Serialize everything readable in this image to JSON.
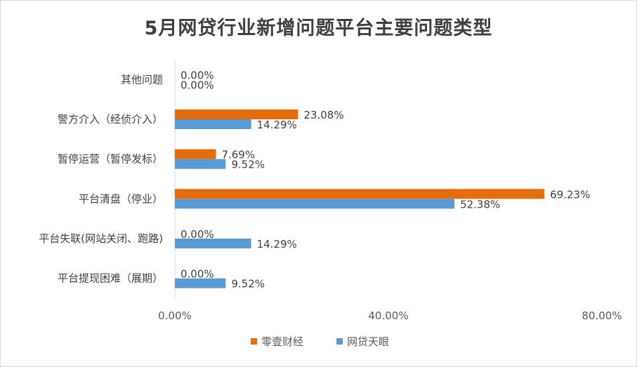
{
  "chart_data": {
    "type": "bar",
    "orientation": "horizontal",
    "title": "5月网贷行业新增问题平台主要问题类型",
    "categories": [
      "其他问题",
      "警方介入（经侦介入）",
      "暂停运营（暂停发标）",
      "平台清盘（停业）",
      "平台失联(网站关闭、跑路)",
      "平台提现困难（展期）"
    ],
    "series": [
      {
        "name": "零壹财经",
        "color": "#e46c0a",
        "values": [
          0.0,
          23.08,
          7.69,
          69.23,
          0.0,
          0.0
        ],
        "labels": [
          "0.00%",
          "23.08%",
          "7.69%",
          "69.23%",
          "0.00%",
          "0.00%"
        ]
      },
      {
        "name": "网贷天眼",
        "color": "#5b9bd5",
        "values": [
          0.0,
          14.29,
          9.52,
          52.38,
          14.29,
          9.52
        ],
        "labels": [
          "0.00%",
          "14.29%",
          "9.52%",
          "52.38%",
          "14.29%",
          "9.52%"
        ]
      }
    ],
    "xlim": [
      0,
      80
    ],
    "xticks": [
      0,
      40,
      80
    ],
    "xtick_labels": [
      "0.00%",
      "40.00%",
      "80.00%"
    ],
    "grid": false,
    "legend": "bottom"
  }
}
